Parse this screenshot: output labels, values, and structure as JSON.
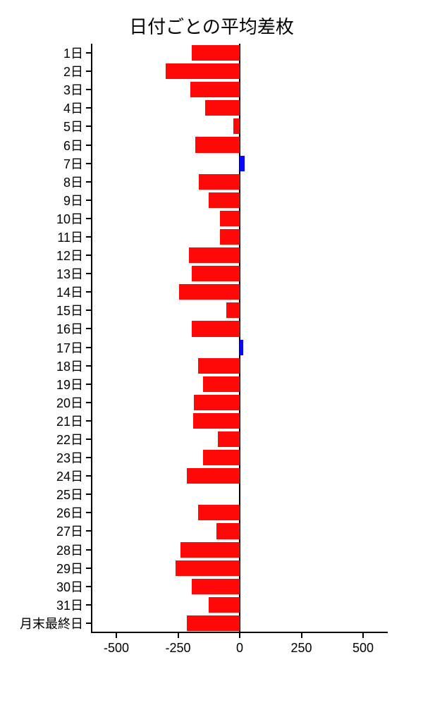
{
  "chart": {
    "type": "bar-horizontal",
    "title": "日付ごとの平均差枚",
    "title_fontsize": 26,
    "background_color": "#ffffff",
    "axis_color": "#000000",
    "label_color": "#000000",
    "label_fontsize": 18,
    "bar_fill_negative": "#ff0808",
    "bar_fill_positive": "#0808ff",
    "xlim": [
      -600,
      600
    ],
    "xtick_step": 250,
    "xticks": [
      -500,
      -250,
      0,
      250,
      500
    ],
    "xtick_labels": [
      "-500",
      "-250",
      "0",
      "250",
      "500"
    ],
    "bar_gap_ratio": 0.14,
    "categories": [
      "1日",
      "2日",
      "3日",
      "4日",
      "5日",
      "6日",
      "7日",
      "8日",
      "9日",
      "10日",
      "11日",
      "12日",
      "13日",
      "14日",
      "15日",
      "16日",
      "17日",
      "18日",
      "19日",
      "20日",
      "21日",
      "22日",
      "23日",
      "24日",
      "25日",
      "26日",
      "27日",
      "28日",
      "29日",
      "30日",
      "31日",
      "月末最終日"
    ],
    "values": [
      -195,
      -300,
      -200,
      -140,
      -25,
      -180,
      20,
      -165,
      -125,
      -80,
      -80,
      -205,
      -195,
      -245,
      -55,
      -195,
      15,
      -170,
      -150,
      -185,
      -190,
      -90,
      -150,
      -215,
      0,
      -170,
      -95,
      -240,
      -260,
      -195,
      -125,
      -215
    ]
  }
}
